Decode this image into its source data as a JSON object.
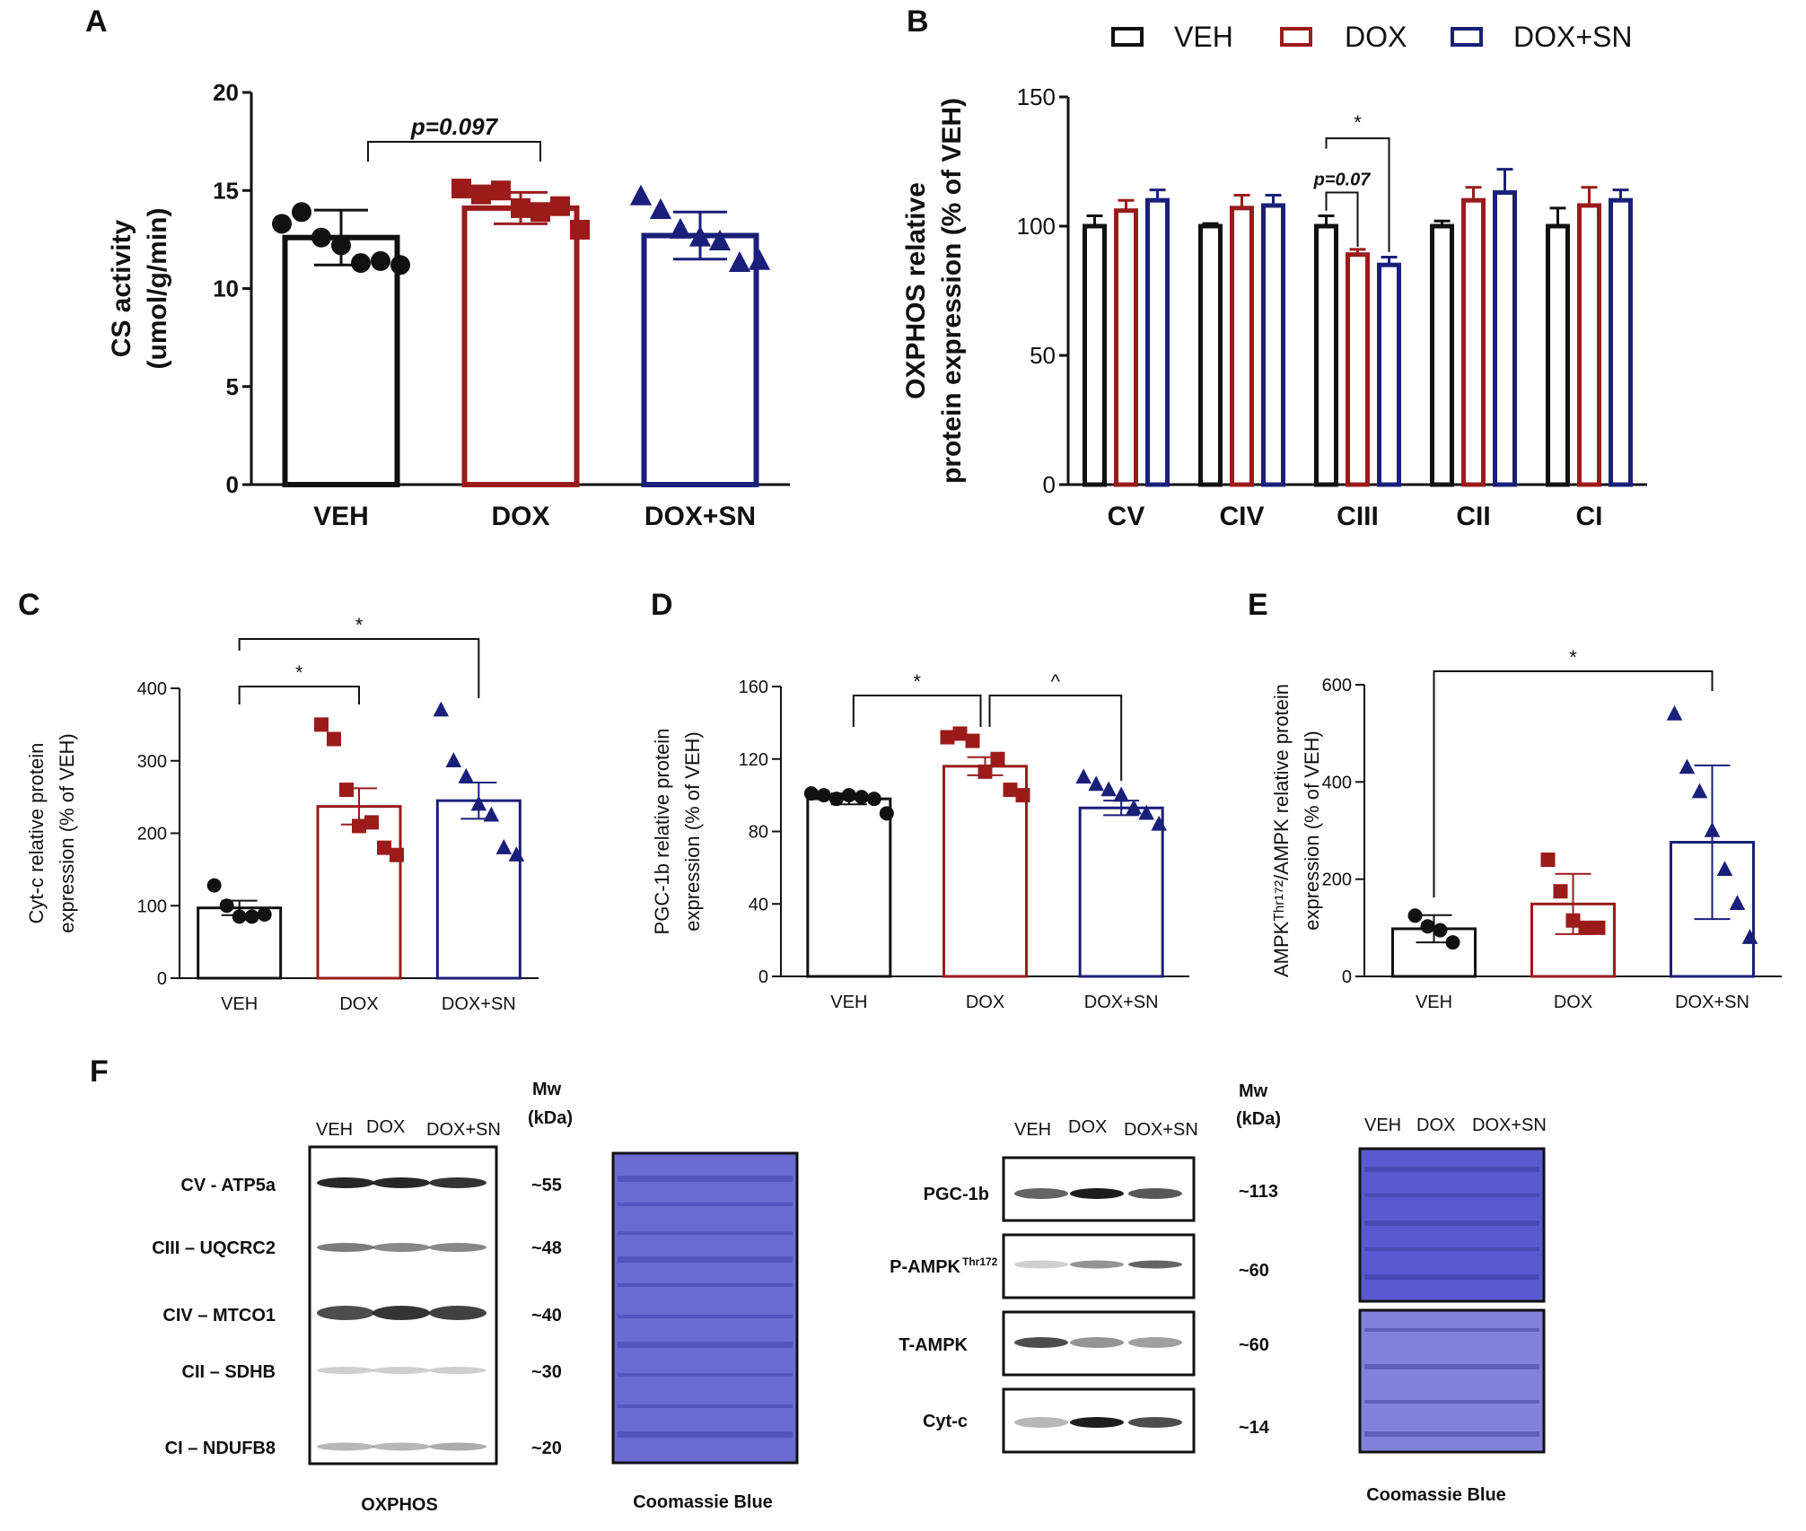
{
  "colors": {
    "veh": "#111111",
    "dox": "#9b1b1b",
    "doxsn": "#1a1f7a",
    "coomassie": "#6a6ad0"
  },
  "chart_data": [
    {
      "id": "A",
      "panel_label": "A",
      "type": "bar",
      "categories": [
        "VEH",
        "DOX",
        "DOX+SN"
      ],
      "values": [
        12.6,
        14.1,
        12.7
      ],
      "error": [
        1.4,
        0.8,
        1.2
      ],
      "ylabel": [
        "CS activity",
        "(umol/g/min)"
      ],
      "ylim": [
        0,
        20
      ],
      "yticks": [
        0,
        5,
        10,
        15,
        20
      ],
      "points": [
        [
          13.3,
          13.9,
          12.6,
          12.2,
          11.3,
          11.4,
          11.2
        ],
        [
          15.1,
          14.8,
          15.0,
          14.1,
          13.9,
          14.2,
          13.0
        ],
        [
          14.7,
          14.0,
          13.0,
          12.6,
          12.4,
          11.3,
          11.4
        ]
      ],
      "markers": [
        "circle",
        "square",
        "triangle"
      ],
      "bracket_text": "p=0.097"
    },
    {
      "id": "B",
      "panel_label": "B",
      "type": "bar",
      "categories": [
        "CV",
        "CIV",
        "CIII",
        "CII",
        "CI"
      ],
      "series": [
        {
          "name": "VEH",
          "values": [
            100,
            100,
            100,
            100,
            100
          ],
          "error": [
            4,
            1,
            4,
            2,
            7
          ]
        },
        {
          "name": "DOX",
          "values": [
            106,
            107,
            89,
            110,
            108
          ],
          "error": [
            4,
            5,
            2,
            5,
            7
          ]
        },
        {
          "name": "DOX+SN",
          "values": [
            110,
            108,
            85,
            113,
            110
          ],
          "error": [
            4,
            4,
            3,
            9,
            4
          ]
        }
      ],
      "ylabel": [
        "OXPHOS relative",
        "protein expression (% of VEH)"
      ],
      "ylim": [
        0,
        150
      ],
      "yticks": [
        0,
        50,
        100,
        150
      ],
      "annotations": [
        "p=0.07",
        "*"
      ]
    },
    {
      "id": "C",
      "panel_label": "C",
      "type": "bar",
      "categories": [
        "VEH",
        "DOX",
        "DOX+SN"
      ],
      "values": [
        97,
        237,
        245
      ],
      "error": [
        10,
        25,
        25
      ],
      "ylabel": [
        "Cyt-c relative protein",
        "expression (% of VEH)"
      ],
      "ylim": [
        0,
        400
      ],
      "yticks": [
        0,
        100,
        200,
        300,
        400
      ],
      "points": [
        [
          128,
          100,
          85,
          85,
          88
        ],
        [
          350,
          330,
          260,
          210,
          215,
          180,
          170
        ],
        [
          370,
          300,
          278,
          240,
          225,
          180,
          170
        ]
      ],
      "markers": [
        "circle",
        "square",
        "triangle"
      ],
      "brackets": [
        "*",
        "*"
      ]
    },
    {
      "id": "D",
      "panel_label": "D",
      "type": "bar",
      "categories": [
        "VEH",
        "DOX",
        "DOX+SN"
      ],
      "values": [
        98,
        116,
        93
      ],
      "error": [
        3,
        5,
        4
      ],
      "ylabel": [
        "PGC-1b relative protein",
        "expression (% of VEH)"
      ],
      "ylim": [
        0,
        160
      ],
      "yticks": [
        0,
        40,
        80,
        120,
        160
      ],
      "points": [
        [
          101,
          100,
          98,
          100,
          99,
          98,
          90
        ],
        [
          132,
          134,
          130,
          113,
          120,
          103,
          100
        ],
        [
          110,
          106,
          103,
          100,
          93,
          90,
          84
        ]
      ],
      "markers": [
        "circle",
        "square",
        "triangle"
      ],
      "brackets": [
        "*",
        "^"
      ]
    },
    {
      "id": "E",
      "panel_label": "E",
      "type": "bar",
      "categories": [
        "VEH",
        "DOX",
        "DOX+SN"
      ],
      "values": [
        98,
        149,
        276
      ],
      "error": [
        28,
        62,
        158
      ],
      "ylabel": [
        "AMPKᵀʰʳ¹⁷²/AMPK relative protein",
        "expression (% of VEH)"
      ],
      "ylim": [
        0,
        600
      ],
      "yticks": [
        0,
        200,
        400,
        600
      ],
      "points": [
        [
          125,
          103,
          95,
          70
        ],
        [
          240,
          175,
          115,
          100,
          100
        ],
        [
          540,
          430,
          380,
          300,
          220,
          150,
          80
        ]
      ],
      "markers": [
        "circle",
        "square",
        "triangle"
      ],
      "brackets": [
        "*"
      ]
    }
  ],
  "legend": [
    "VEH",
    "DOX",
    "DOX+SN"
  ],
  "blots": {
    "panel_label": "F",
    "lanes": [
      "VEH",
      "DOX",
      "DOX+SN"
    ],
    "mw_header": [
      "Mw",
      "(kDa)"
    ],
    "oxphos": {
      "labels": [
        "CV - ATP5a",
        "CIII – UQCRC2",
        "CIV – MTCO1",
        "CII – SDHB",
        "CI – NDUFB8"
      ],
      "mw": [
        "~55",
        "~48",
        "~40",
        "~30",
        "~20"
      ],
      "caption": "OXPHOS"
    },
    "other": {
      "labels": [
        "PGC-1b",
        "P-AMPK",
        "T-AMPK",
        "Cyt-c"
      ],
      "p_ampk_superscript": "Thr172",
      "mw": [
        "~113",
        "~60",
        "~60",
        "~14"
      ]
    },
    "coomassie_caption": "Coomassie  Blue"
  }
}
